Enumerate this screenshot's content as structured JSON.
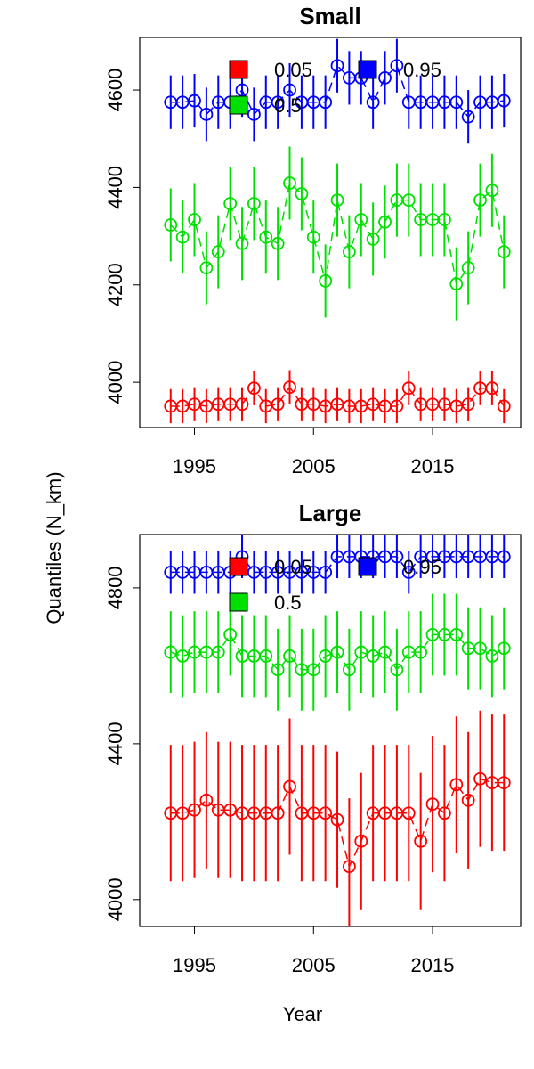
{
  "y_label": "Quantiles (N_km)",
  "x_label": "Year",
  "chart_data": [
    {
      "type": "errorbar-line",
      "title": "Small",
      "legend": "top",
      "x": [
        1993,
        1994,
        1995,
        1996,
        1997,
        1998,
        1999,
        2000,
        2001,
        2002,
        2003,
        2004,
        2005,
        2006,
        2007,
        2008,
        2009,
        2010,
        2011,
        2012,
        2013,
        2014,
        2015,
        2016,
        2017,
        2018,
        2019,
        2020,
        2021
      ],
      "xlim": [
        1990.4,
        2022.4
      ],
      "xticks": [
        1995,
        2005,
        2015
      ],
      "ylim": [
        3907,
        4708
      ],
      "yticks": [
        4000,
        4200,
        4400,
        4600
      ],
      "series": [
        {
          "name": "0.05",
          "color": "#ff0000",
          "error": 35,
          "values": [
            3951,
            3951,
            3955,
            3951,
            3955,
            3955,
            3955,
            3988,
            3951,
            3955,
            3990,
            3955,
            3955,
            3951,
            3955,
            3951,
            3951,
            3955,
            3951,
            3951,
            3988,
            3955,
            3955,
            3955,
            3951,
            3955,
            3988,
            3988,
            3951
          ]
        },
        {
          "name": "0.5",
          "color": "#00e000",
          "error": 75,
          "values": [
            4323,
            4298,
            4334,
            4235,
            4268,
            4367,
            4285,
            4367,
            4298,
            4285,
            4409,
            4387,
            4298,
            4208,
            4374,
            4268,
            4334,
            4294,
            4329,
            4374,
            4374,
            4334,
            4334,
            4334,
            4202,
            4235,
            4374,
            4394,
            4268
          ]
        },
        {
          "name": "0.95",
          "color": "#0000ff",
          "error": 55,
          "values": [
            4575,
            4575,
            4578,
            4550,
            4575,
            4575,
            4600,
            4550,
            4575,
            4575,
            4600,
            4575,
            4575,
            4575,
            4650,
            4625,
            4625,
            4575,
            4625,
            4650,
            4575,
            4575,
            4575,
            4575,
            4575,
            4545,
            4575,
            4575,
            4578
          ]
        }
      ]
    },
    {
      "type": "errorbar-line",
      "title": "Large",
      "legend": "top",
      "x": [
        1993,
        1994,
        1995,
        1996,
        1997,
        1998,
        1999,
        2000,
        2001,
        2002,
        2003,
        2004,
        2005,
        2006,
        2007,
        2008,
        2009,
        2010,
        2011,
        2012,
        2013,
        2014,
        2015,
        2016,
        2017,
        2018,
        2019,
        2020,
        2021
      ],
      "xlim": [
        1990.4,
        2022.4
      ],
      "xticks": [
        1995,
        2005,
        2015
      ],
      "ylim": [
        3931,
        4937
      ],
      "yticks": [
        4000,
        4400,
        4800
      ],
      "series": [
        {
          "name": "0.05",
          "color": "#ff0000",
          "error": 175,
          "values": [
            4222,
            4222,
            4230,
            4255,
            4230,
            4230,
            4222,
            4222,
            4222,
            4222,
            4290,
            4222,
            4222,
            4222,
            4205,
            4085,
            4150,
            4222,
            4222,
            4222,
            4222,
            4150,
            4245,
            4222,
            4295,
            4255,
            4310,
            4300,
            4300
          ]
        },
        {
          "name": "0.5",
          "color": "#00e000",
          "error": 105,
          "values": [
            4635,
            4625,
            4635,
            4635,
            4635,
            4680,
            4625,
            4625,
            4625,
            4590,
            4625,
            4590,
            4590,
            4625,
            4635,
            4590,
            4635,
            4625,
            4635,
            4590,
            4635,
            4635,
            4680,
            4680,
            4680,
            4645,
            4645,
            4625,
            4645
          ]
        },
        {
          "name": "0.95",
          "color": "#0000ff",
          "error": 55,
          "values": [
            4840,
            4840,
            4840,
            4840,
            4840,
            4840,
            4880,
            4840,
            4840,
            4840,
            4840,
            4840,
            4840,
            4840,
            4880,
            4880,
            4880,
            4880,
            4880,
            4880,
            4840,
            4880,
            4880,
            4880,
            4880,
            4880,
            4880,
            4880,
            4880
          ]
        }
      ]
    }
  ]
}
